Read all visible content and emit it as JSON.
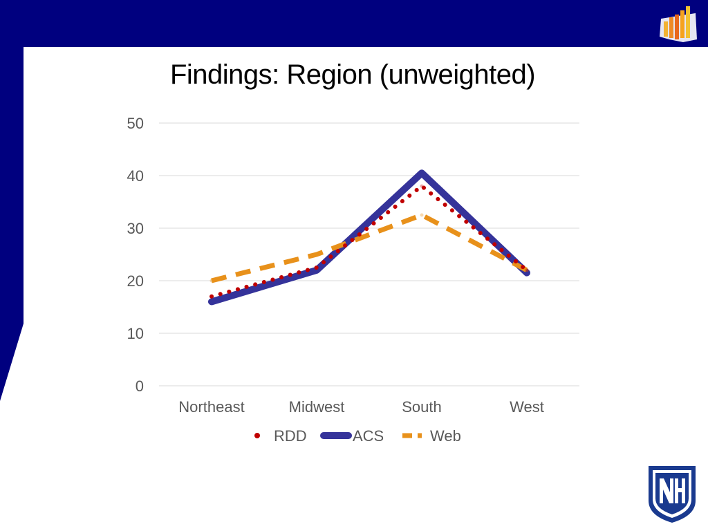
{
  "slide": {
    "title": "Findings: Region (unweighted)"
  },
  "colors": {
    "header_band": "#00007f",
    "rdd": "#c00000",
    "acs": "#35339a",
    "web": "#e8911b",
    "gridline": "#d9d9d9",
    "axis_text": "#595959"
  },
  "chart_data": {
    "type": "line",
    "categories": [
      "Northeast",
      "Midwest",
      "South",
      "West"
    ],
    "series": [
      {
        "name": "RDD",
        "values": [
          17,
          22.5,
          38,
          22
        ],
        "style": "dotted"
      },
      {
        "name": "ACS",
        "values": [
          16,
          22,
          40.5,
          21.5
        ],
        "style": "solid-thick"
      },
      {
        "name": "Web",
        "values": [
          20,
          25,
          32.5,
          22
        ],
        "style": "dashed"
      }
    ],
    "ylim": [
      0,
      50
    ],
    "yticks": [
      0,
      10,
      20,
      30,
      40,
      50
    ],
    "ytick_labels": [
      "0",
      "10",
      "20",
      "30",
      "40",
      "50"
    ],
    "grid": true,
    "legend_position": "bottom"
  }
}
